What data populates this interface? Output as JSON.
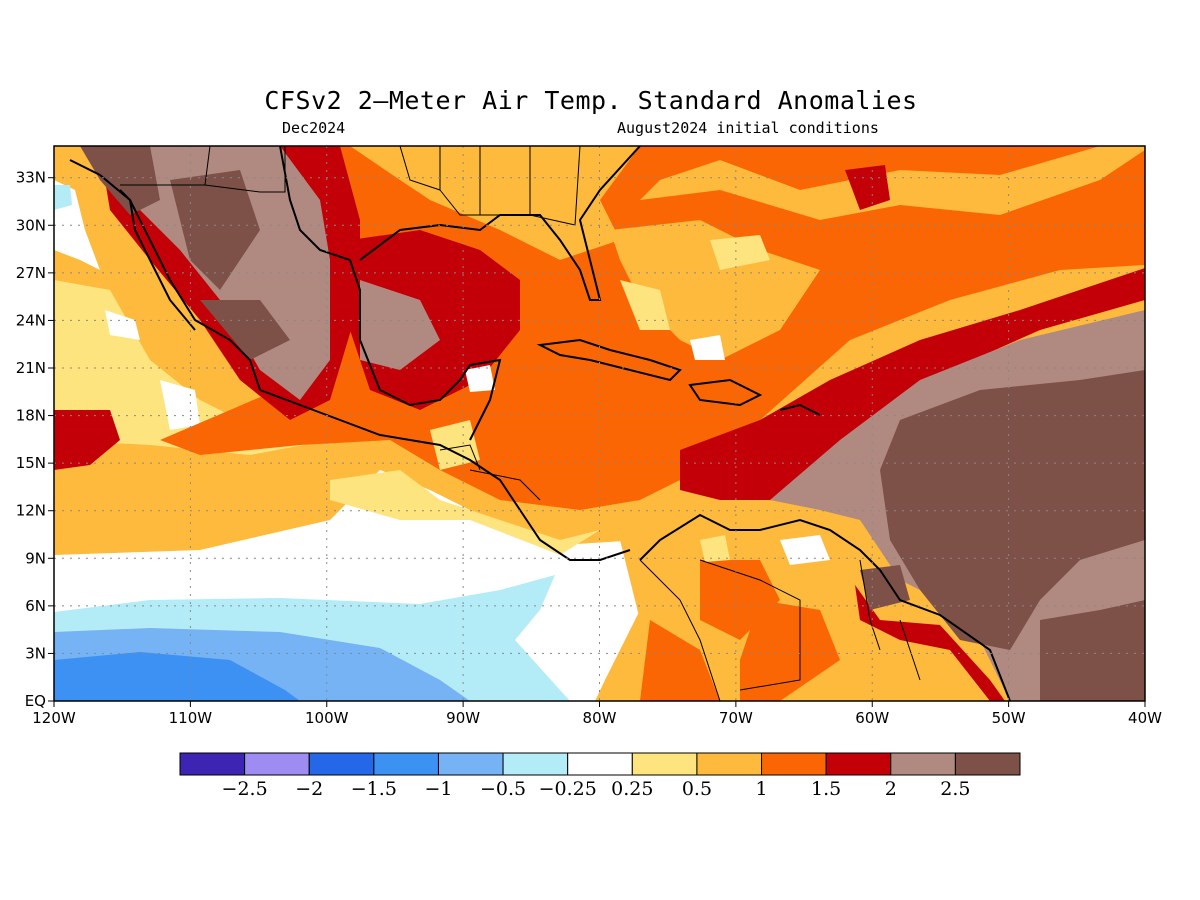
{
  "title": "CFSv2 2–Meter Air Temp. Standard Anomalies",
  "subtitle_left": "Dec2024",
  "subtitle_right": "August2024 initial conditions",
  "map": {
    "lon_range": [
      -120,
      -40
    ],
    "lat_range": [
      0,
      35
    ],
    "x_ticks": [
      "120W",
      "110W",
      "100W",
      "90W",
      "80W",
      "70W",
      "60W",
      "50W",
      "40W"
    ],
    "y_ticks": [
      "EQ",
      "3N",
      "6N",
      "9N",
      "12N",
      "15N",
      "18N",
      "21N",
      "24N",
      "27N",
      "30N",
      "33N"
    ],
    "grid": "dotted"
  },
  "legend": {
    "colors": [
      "#3d24b3",
      "#9f8cf2",
      "#2467e8",
      "#3d91f2",
      "#76b3f4",
      "#b3ecf7",
      "#ffffff",
      "#fde47e",
      "#fdba3d",
      "#fb6605",
      "#c30007",
      "#b08a80",
      "#7d5147"
    ],
    "labels": [
      "−2.5",
      "−2",
      "−1.5",
      "−1",
      "−0.5",
      "−0.25",
      "0.25",
      "0.5",
      "1",
      "1.5",
      "2",
      "2.5"
    ]
  }
}
